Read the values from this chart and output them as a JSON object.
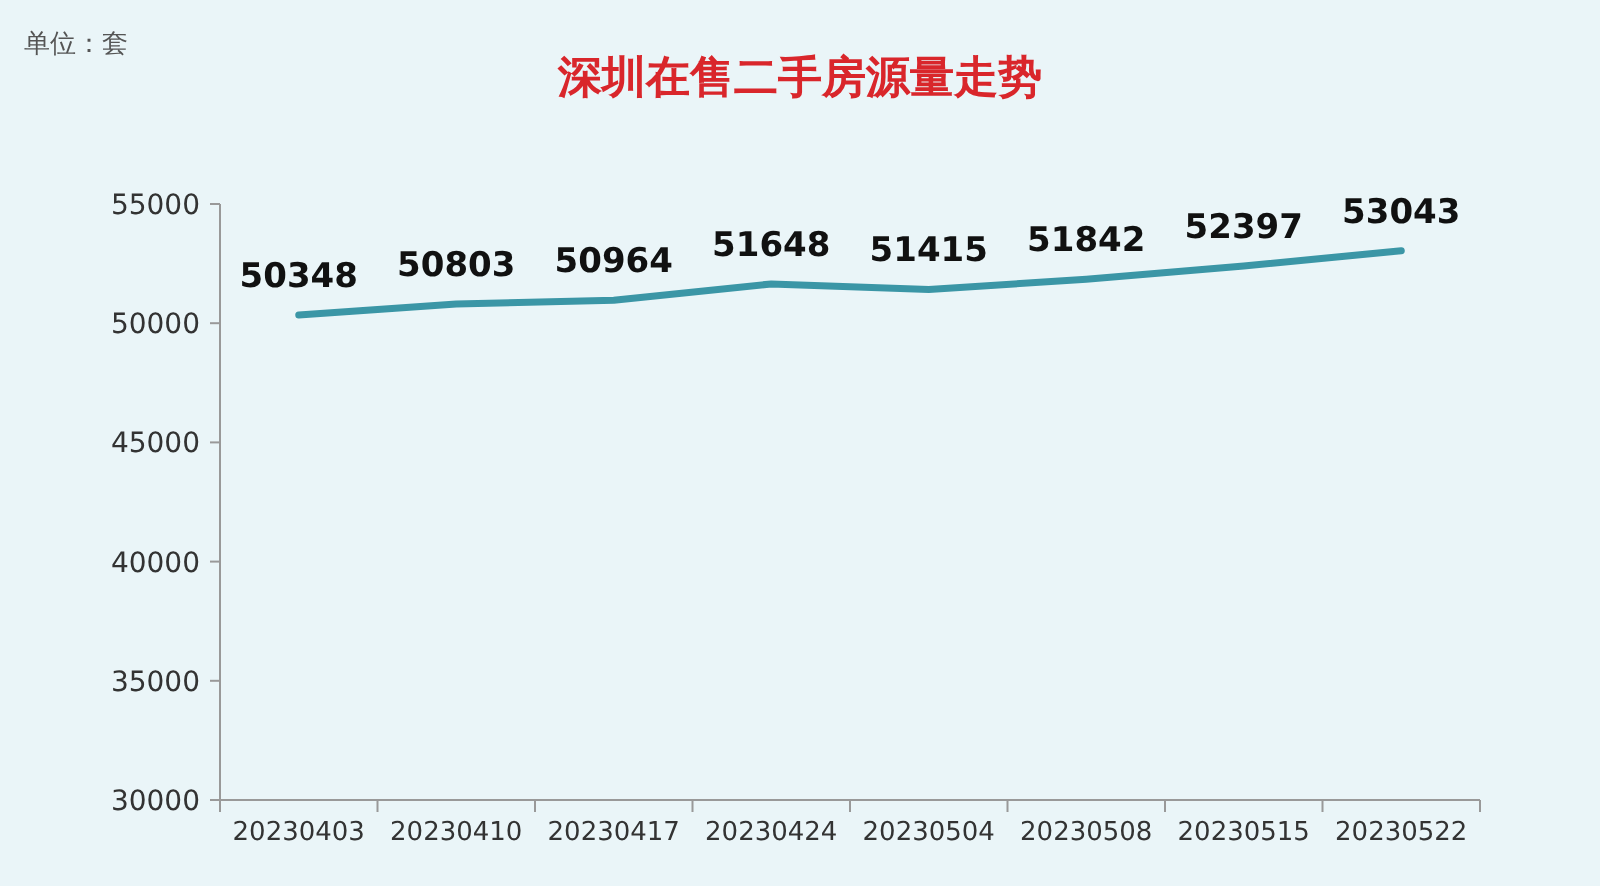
{
  "chart_data": {
    "type": "line",
    "title": "深圳在售二手房源量走势",
    "annotations": [
      "单位：套"
    ],
    "categories": [
      "20230403",
      "20230410",
      "20230417",
      "20230424",
      "20230504",
      "20230508",
      "20230515",
      "20230522"
    ],
    "values": [
      50348,
      50803,
      50964,
      51648,
      51415,
      51842,
      52397,
      53043
    ],
    "color": "#3b96a6",
    "ylim": [
      30000,
      55000
    ],
    "yticks": [
      30000,
      35000,
      40000,
      45000,
      50000,
      55000
    ],
    "data_labels": true,
    "grid": false,
    "legend": false,
    "marker": "none",
    "line_style": "solid"
  }
}
